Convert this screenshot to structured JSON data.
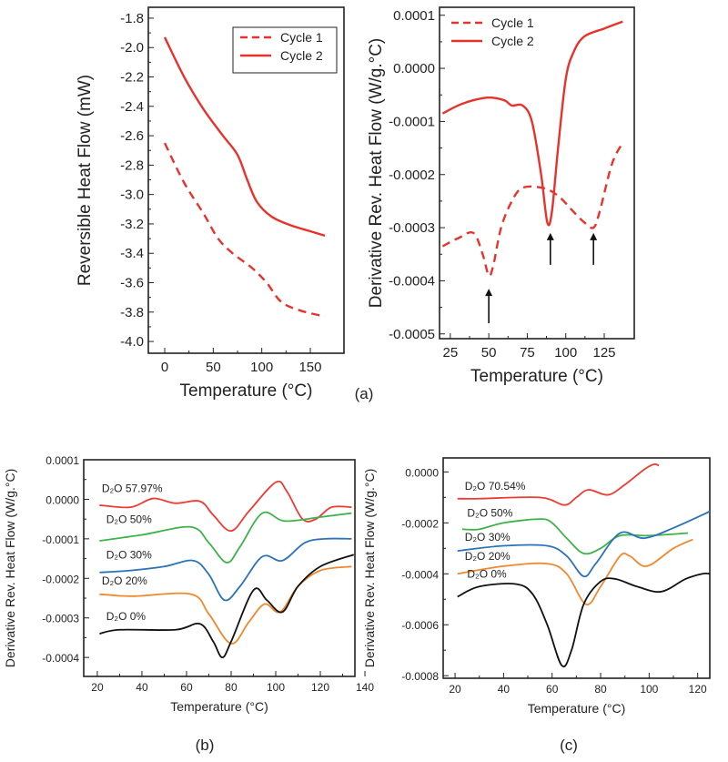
{
  "panel_labels": [
    "(a)",
    "(b)",
    "(c)"
  ],
  "chart_data": [
    {
      "id": "a-left",
      "type": "line",
      "xlabel": "Temperature (°C)",
      "ylabel": "Reversible Heat Flow (mW)",
      "xlim": [
        -16.9,
        184.7
      ],
      "ylim": [
        -4.08,
        -1.726
      ],
      "xticks": [
        {
          "v": 0,
          "t": "0"
        },
        {
          "v": 50,
          "t": "50"
        },
        {
          "v": 100,
          "t": "100"
        },
        {
          "v": 150,
          "t": "150"
        }
      ],
      "yticks": [
        {
          "v": -1.8,
          "t": "-1.8"
        },
        {
          "v": -2.0,
          "t": "-2.0"
        },
        {
          "v": -2.2,
          "t": "-2.2"
        },
        {
          "v": -2.4,
          "t": "-2.4"
        },
        {
          "v": -2.6,
          "t": "-2.6"
        },
        {
          "v": -2.8,
          "t": "-2.8"
        },
        {
          "v": -3.0,
          "t": "-3.0"
        },
        {
          "v": -3.2,
          "t": "-3.2"
        },
        {
          "v": -3.4,
          "t": "-3.4"
        },
        {
          "v": -3.6,
          "t": "-3.6"
        },
        {
          "v": -3.8,
          "t": "-3.8"
        },
        {
          "v": -4.0,
          "t": "-4.0"
        }
      ],
      "legend": {
        "placement": "top-right",
        "boxed": true
      },
      "series": [
        {
          "name": "Cycle 1",
          "color": "#e8322c",
          "dash": true,
          "points": [
            [
              0,
              -2.65
            ],
            [
              20,
              -2.92
            ],
            [
              40,
              -3.13
            ],
            [
              55,
              -3.3
            ],
            [
              70,
              -3.4
            ],
            [
              90,
              -3.5
            ],
            [
              105,
              -3.6
            ],
            [
              120,
              -3.73
            ],
            [
              140,
              -3.79
            ],
            [
              165,
              -3.83
            ]
          ]
        },
        {
          "name": "Cycle 2",
          "color": "#e8322c",
          "dash": false,
          "points": [
            [
              0,
              -1.93
            ],
            [
              20,
              -2.2
            ],
            [
              40,
              -2.42
            ],
            [
              60,
              -2.6
            ],
            [
              75,
              -2.73
            ],
            [
              85,
              -2.9
            ],
            [
              95,
              -3.05
            ],
            [
              110,
              -3.15
            ],
            [
              130,
              -3.21
            ],
            [
              150,
              -3.25
            ],
            [
              165,
              -3.28
            ]
          ]
        }
      ]
    },
    {
      "id": "a-right",
      "type": "line",
      "xlabel": "Temperature (°C)",
      "ylabel": "Derivative Rev. Heat Flow (W/g.°C)",
      "xlim": [
        18,
        144.5
      ],
      "ylim": [
        -0.000509,
        0.000115
      ],
      "xticks": [
        {
          "v": 25,
          "t": "25"
        },
        {
          "v": 50,
          "t": "50"
        },
        {
          "v": 75,
          "t": "75"
        },
        {
          "v": 100,
          "t": "100"
        },
        {
          "v": 125,
          "t": "125"
        }
      ],
      "yticks": [
        {
          "v": 0.0001,
          "t": "0.0001"
        },
        {
          "v": 0,
          "t": "0.0000"
        },
        {
          "v": -0.0001,
          "t": "-0.0001"
        },
        {
          "v": -0.0002,
          "t": "-0.0002"
        },
        {
          "v": -0.0003,
          "t": "-0.0003"
        },
        {
          "v": -0.0004,
          "t": "-0.0004"
        },
        {
          "v": -0.0005,
          "t": "-0.0005"
        }
      ],
      "legend": {
        "placement": "top-left",
        "boxed": false
      },
      "arrows": [
        [
          50,
          -0.00048,
          -0.000415
        ],
        [
          90,
          -0.00037,
          -0.00031
        ],
        [
          118,
          -0.00037,
          -0.00031
        ]
      ],
      "series": [
        {
          "name": "Cycle 1",
          "color": "#e8322c",
          "dash": true,
          "points": [
            [
              20,
              -0.000335
            ],
            [
              30,
              -0.00032
            ],
            [
              40,
              -0.00031
            ],
            [
              46,
              -0.00035
            ],
            [
              50,
              -0.00039
            ],
            [
              53,
              -0.00037
            ],
            [
              58,
              -0.0003
            ],
            [
              65,
              -0.00025
            ],
            [
              72,
              -0.000225
            ],
            [
              85,
              -0.000225
            ],
            [
              95,
              -0.00024
            ],
            [
              105,
              -0.00027
            ],
            [
              112,
              -0.00029
            ],
            [
              118,
              -0.0003
            ],
            [
              122,
              -0.00027
            ],
            [
              130,
              -0.00018
            ],
            [
              137,
              -0.00014
            ]
          ]
        },
        {
          "name": "Cycle 2",
          "color": "#e8322c",
          "dash": false,
          "points": [
            [
              20,
              -8.5e-05
            ],
            [
              30,
              -7e-05
            ],
            [
              40,
              -6e-05
            ],
            [
              50,
              -5.5e-05
            ],
            [
              60,
              -6e-05
            ],
            [
              65,
              -7e-05
            ],
            [
              72,
              -7e-05
            ],
            [
              78,
              -0.0001
            ],
            [
              84,
              -0.0002
            ],
            [
              88,
              -0.00029
            ],
            [
              91,
              -0.00027
            ],
            [
              95,
              -0.00015
            ],
            [
              100,
              -2e-05
            ],
            [
              105,
              3e-05
            ],
            [
              112,
              6e-05
            ],
            [
              125,
              7.5e-05
            ],
            [
              137,
              8.8e-05
            ]
          ]
        }
      ]
    },
    {
      "id": "b",
      "type": "line",
      "xlabel": "Temperature (°C)",
      "ylabel": "Derivative Rev. Heat Flow (W/g.°C)",
      "xlim": [
        13.9,
        135.5
      ],
      "ylim": [
        -0.000448,
        0.0001
      ],
      "xticks": [
        {
          "v": 20,
          "t": "20"
        },
        {
          "v": 40,
          "t": "40"
        },
        {
          "v": 60,
          "t": "60"
        },
        {
          "v": 80,
          "t": "80"
        },
        {
          "v": 100,
          "t": "100"
        },
        {
          "v": 120,
          "t": "120"
        },
        {
          "v": 140,
          "t": "140"
        }
      ],
      "yticks": [
        {
          "v": 0.0001,
          "t": "0.0001"
        },
        {
          "v": 0,
          "t": "0.0000"
        },
        {
          "v": -0.0001,
          "t": "-0.0001"
        },
        {
          "v": -0.0002,
          "t": "-0.0002"
        },
        {
          "v": -0.0003,
          "t": "-0.0003"
        },
        {
          "v": -0.0004,
          "t": "-0.0004"
        }
      ],
      "series": [
        {
          "name": "D₂O 57.97%",
          "color": "#ee3b34",
          "label_at": [
            22,
            1.8e-05
          ],
          "points": [
            [
              21,
              -1.5e-05
            ],
            [
              35,
              -2e-05
            ],
            [
              45,
              2e-06
            ],
            [
              55,
              -1e-05
            ],
            [
              66,
              -5e-06
            ],
            [
              72,
              -4e-05
            ],
            [
              80,
              -8e-05
            ],
            [
              88,
              -3e-05
            ],
            [
              100,
              4.3e-05
            ],
            [
              105,
              2e-05
            ],
            [
              112,
              -5e-05
            ],
            [
              118,
              -5e-05
            ],
            [
              125,
              -2e-05
            ],
            [
              134,
              -2e-05
            ]
          ]
        },
        {
          "name": "D₂O 50%",
          "color": "#3fb34a",
          "label_at": [
            24,
            -6e-05
          ],
          "points": [
            [
              21,
              -0.000105
            ],
            [
              40,
              -9e-05
            ],
            [
              62,
              -7e-05
            ],
            [
              70,
              -0.00011
            ],
            [
              78,
              -0.00016
            ],
            [
              84,
              -0.00012
            ],
            [
              94,
              -3.5e-05
            ],
            [
              104,
              -5.5e-05
            ],
            [
              120,
              -4.5e-05
            ],
            [
              134,
              -3.5e-05
            ]
          ]
        },
        {
          "name": "D₂O 30%",
          "color": "#2a73b8",
          "label_at": [
            24,
            -0.00015
          ],
          "points": [
            [
              21,
              -0.000185
            ],
            [
              35,
              -0.00018
            ],
            [
              50,
              -0.00017
            ],
            [
              63,
              -0.000155
            ],
            [
              70,
              -0.00019
            ],
            [
              77,
              -0.000255
            ],
            [
              84,
              -0.00022
            ],
            [
              94,
              -0.000145
            ],
            [
              103,
              -0.000155
            ],
            [
              113,
              -0.00011
            ],
            [
              122,
              -0.0001
            ],
            [
              134,
              -0.0001
            ]
          ]
        },
        {
          "name": "D₂O 20%",
          "color": "#f0882e",
          "label_at": [
            22,
            -0.000215
          ],
          "points": [
            [
              21,
              -0.00024
            ],
            [
              36,
              -0.000245
            ],
            [
              62,
              -0.00024
            ],
            [
              70,
              -0.00029
            ],
            [
              80,
              -0.000365
            ],
            [
              88,
              -0.00031
            ],
            [
              95,
              -0.000265
            ],
            [
              102,
              -0.000285
            ],
            [
              110,
              -0.00022
            ],
            [
              120,
              -0.00018
            ],
            [
              134,
              -0.00017
            ]
          ]
        },
        {
          "name": "D₂O 0%",
          "color": "#111111",
          "label_at": [
            24,
            -0.000305
          ],
          "points": [
            [
              21,
              -0.00034
            ],
            [
              30,
              -0.00033
            ],
            [
              55,
              -0.00033
            ],
            [
              66,
              -0.000315
            ],
            [
              72,
              -0.00036
            ],
            [
              76,
              -0.0004
            ],
            [
              80,
              -0.00036
            ],
            [
              90,
              -0.00023
            ],
            [
              96,
              -0.000255
            ],
            [
              103,
              -0.000285
            ],
            [
              110,
              -0.00022
            ],
            [
              120,
              -0.00017
            ],
            [
              135,
              -0.00014
            ]
          ]
        }
      ]
    },
    {
      "id": "c",
      "type": "line",
      "xlabel": "Temperature (°C)",
      "ylabel": "Derivative Rev. Heat Flow (W/g.°C)",
      "xlim": [
        15.1,
        125
      ],
      "ylim": [
        -0.00081,
        5.5e-05
      ],
      "xticks": [
        {
          "v": 20,
          "t": "20"
        },
        {
          "v": 40,
          "t": "40"
        },
        {
          "v": 60,
          "t": "60"
        },
        {
          "v": 80,
          "t": "80"
        },
        {
          "v": 100,
          "t": "100"
        },
        {
          "v": 120,
          "t": "120"
        }
      ],
      "yticks": [
        {
          "v": 0,
          "t": "0.0000"
        },
        {
          "v": -0.0002,
          "t": "-0.0002"
        },
        {
          "v": -0.0004,
          "t": "-0.0004"
        },
        {
          "v": -0.0006,
          "t": "-0.0006"
        },
        {
          "v": -0.0008,
          "t": "-0.0008"
        }
      ],
      "series": [
        {
          "name": "D₂O 70.54%",
          "color": "#ee3b34",
          "label_at": [
            24,
            -7e-05
          ],
          "points": [
            [
              21,
              -0.000105
            ],
            [
              30,
              -0.000105
            ],
            [
              55,
              -0.0001
            ],
            [
              65,
              -0.00013
            ],
            [
              70,
              -0.0001
            ],
            [
              75,
              -7e-05
            ],
            [
              83,
              -9e-05
            ],
            [
              90,
              -5e-05
            ],
            [
              98,
              1e-05
            ],
            [
              102,
              3e-05
            ],
            [
              104,
              2.5e-05
            ]
          ]
        },
        {
          "name": "D₂O 50%",
          "color": "#3fb34a",
          "label_at": [
            25,
            -0.000175
          ],
          "points": [
            [
              23,
              -0.000225
            ],
            [
              30,
              -0.000225
            ],
            [
              40,
              -0.0002
            ],
            [
              55,
              -0.000185
            ],
            [
              60,
              -0.0002
            ],
            [
              66,
              -0.00026
            ],
            [
              73,
              -0.00032
            ],
            [
              80,
              -0.0003
            ],
            [
              88,
              -0.00025
            ],
            [
              100,
              -0.00025
            ],
            [
              116,
              -0.00024
            ]
          ]
        },
        {
          "name": "D₂O 30%",
          "color": "#2a73b8",
          "label_at": [
            24,
            -0.00027
          ],
          "points": [
            [
              21,
              -0.00031
            ],
            [
              40,
              -0.00029
            ],
            [
              58,
              -0.00029
            ],
            [
              66,
              -0.00033
            ],
            [
              73,
              -0.00041
            ],
            [
              78,
              -0.00036
            ],
            [
              88,
              -0.00024
            ],
            [
              98,
              -0.00026
            ],
            [
              110,
              -0.00022
            ],
            [
              125,
              -0.000155
            ]
          ]
        },
        {
          "name": "D₂O 20%",
          "color": "#f0882e",
          "label_at": [
            24,
            -0.000345
          ],
          "points": [
            [
              21,
              -0.0004
            ],
            [
              40,
              -0.00037
            ],
            [
              58,
              -0.00036
            ],
            [
              66,
              -0.0004
            ],
            [
              74,
              -0.00052
            ],
            [
              80,
              -0.00045
            ],
            [
              88,
              -0.00033
            ],
            [
              92,
              -0.00033
            ],
            [
              99,
              -0.00037
            ],
            [
              110,
              -0.0003
            ],
            [
              118,
              -0.000265
            ]
          ]
        },
        {
          "name": "D₂O 0%",
          "color": "#111111",
          "label_at": [
            25,
            -0.000415
          ],
          "points": [
            [
              21,
              -0.00049
            ],
            [
              30,
              -0.00045
            ],
            [
              45,
              -0.00044
            ],
            [
              52,
              -0.00048
            ],
            [
              58,
              -0.0006
            ],
            [
              64,
              -0.00076
            ],
            [
              68,
              -0.0007
            ],
            [
              73,
              -0.00052
            ],
            [
              80,
              -0.00043
            ],
            [
              86,
              -0.00042
            ],
            [
              95,
              -0.00045
            ],
            [
              105,
              -0.00047
            ],
            [
              115,
              -0.00042
            ],
            [
              122,
              -0.0004
            ],
            [
              125,
              -0.0004
            ]
          ]
        }
      ]
    }
  ]
}
